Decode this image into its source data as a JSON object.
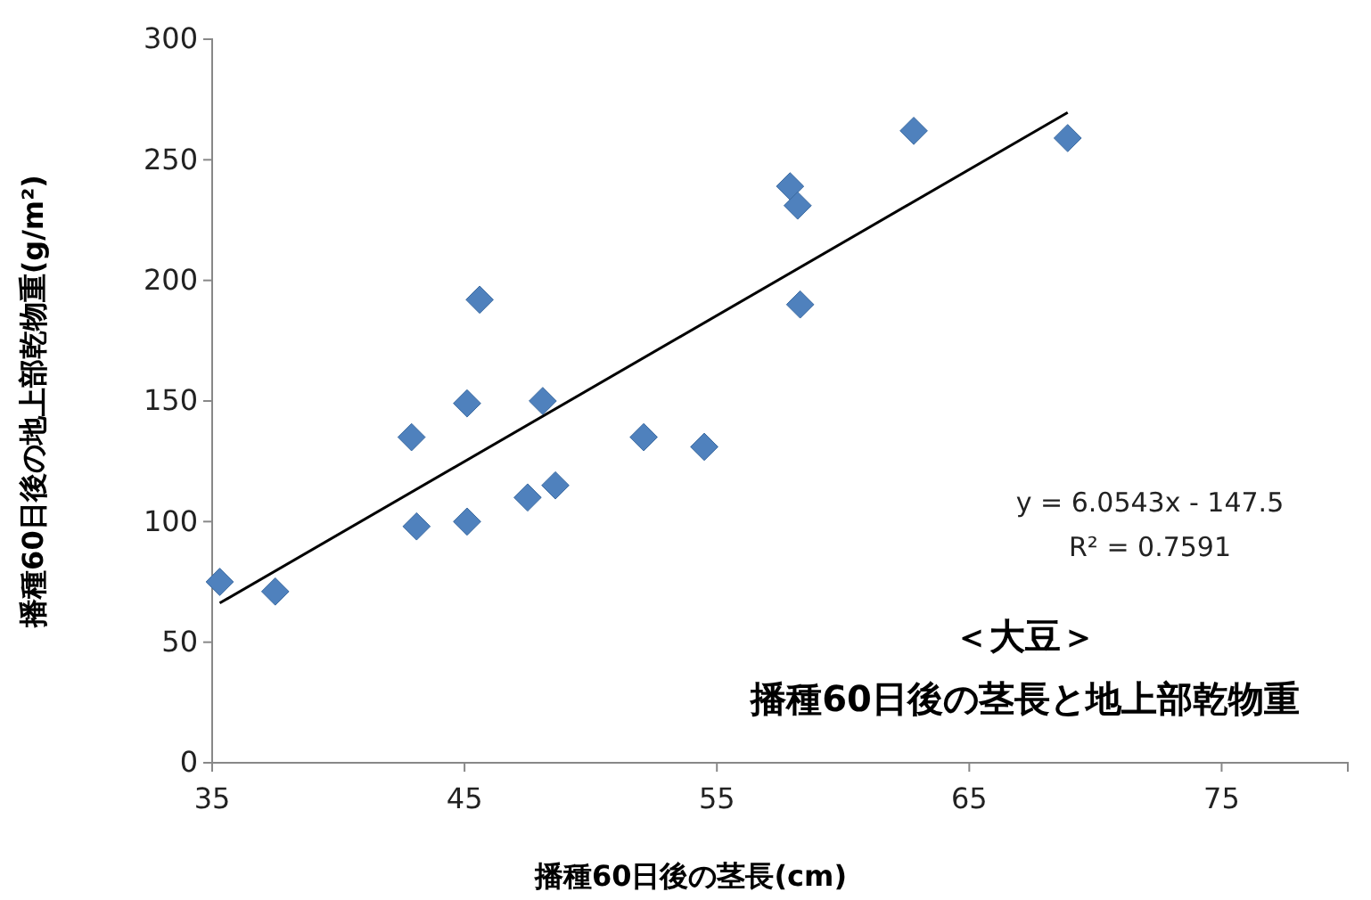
{
  "chart_data": {
    "type": "scatter",
    "title": "＜大豆＞",
    "subtitle": "播種60日後の茎長と地上部乾物重",
    "xlabel": "播種60日後の茎長(cm)",
    "ylabel": "播種60日後の地上部乾物重(g/m²)",
    "xlim": [
      35,
      80
    ],
    "xticks": [
      35,
      45,
      55,
      65,
      75
    ],
    "ylim": [
      0,
      300
    ],
    "yticks": [
      0,
      50,
      100,
      150,
      200,
      250,
      300
    ],
    "grid": false,
    "series": [
      {
        "color": "#4f81bd",
        "marker": "diamond",
        "x": [
          35.3,
          37.5,
          42.9,
          43.1,
          45.1,
          45.1,
          45.6,
          47.5,
          48.1,
          48.6,
          52.1,
          54.5,
          57.9,
          58.2,
          58.3,
          62.8,
          68.9
        ],
        "values": [
          75,
          71,
          135,
          98,
          149,
          100,
          192,
          110,
          150,
          115,
          135,
          131,
          239,
          231,
          190,
          262,
          259
        ]
      },
      {
        "type": "line",
        "color": "#000000",
        "line_style": "solid",
        "x": [
          35.3,
          68.9
        ],
        "values": [
          66.2,
          269.6
        ]
      }
    ],
    "annotations": [
      "y = 6.0543x - 147.5",
      "R² = 0.7591"
    ]
  }
}
